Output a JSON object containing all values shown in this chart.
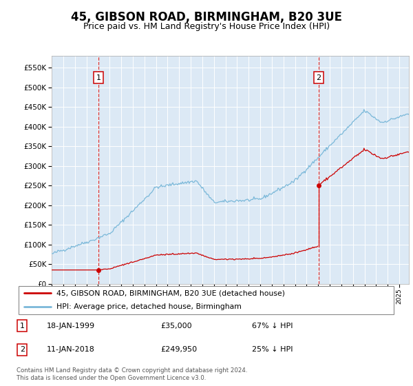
{
  "title": "45, GIBSON ROAD, BIRMINGHAM, B20 3UE",
  "subtitle": "Price paid vs. HM Land Registry's House Price Index (HPI)",
  "title_fontsize": 12,
  "subtitle_fontsize": 9,
  "background_color": "#ffffff",
  "plot_bg_color": "#dce9f5",
  "ylim": [
    0,
    580000
  ],
  "yticks": [
    0,
    50000,
    100000,
    150000,
    200000,
    250000,
    300000,
    350000,
    400000,
    450000,
    500000,
    550000
  ],
  "xlim_start": 1995.0,
  "xlim_end": 2025.83,
  "sale1_year": 1999.04,
  "sale1_price": 35000,
  "sale1_label": "1",
  "sale1_date": "18-JAN-1999",
  "sale1_price_str": "£35,000",
  "sale1_pct": "67% ↓ HPI",
  "sale2_year": 2018.04,
  "sale2_price": 249950,
  "sale2_label": "2",
  "sale2_date": "11-JAN-2018",
  "sale2_price_str": "£249,950",
  "sale2_pct": "25% ↓ HPI",
  "hpi_color": "#7ab8d9",
  "price_color": "#cc0000",
  "vline_color": "#cc0000",
  "legend_label1": "45, GIBSON ROAD, BIRMINGHAM, B20 3UE (detached house)",
  "legend_label2": "HPI: Average price, detached house, Birmingham",
  "footer": "Contains HM Land Registry data © Crown copyright and database right 2024.\nThis data is licensed under the Open Government Licence v3.0."
}
